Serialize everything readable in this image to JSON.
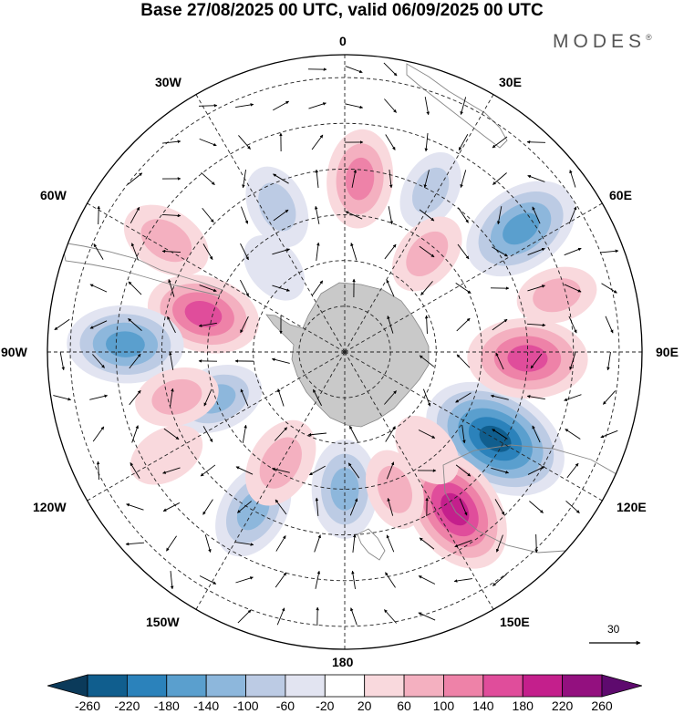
{
  "title": "Base 27/08/2025 00 UTC, valid 06/09/2025 00 UTC",
  "brand": "MODES",
  "brand_mark": "®",
  "longitude_labels": {
    "lon_0": "0",
    "lon_30e": "30E",
    "lon_60e": "60E",
    "lon_90e": "90E",
    "lon_120e": "120E",
    "lon_150e": "150E",
    "lon_180": "180",
    "lon_150w": "150W",
    "lon_120w": "120W",
    "lon_90w": "90W",
    "lon_60w": "60W",
    "lon_30w": "30W"
  },
  "reference_vector": "30",
  "colorbar": {
    "ticks": [
      "-260",
      "-220",
      "-180",
      "-140",
      "-100",
      "-60",
      "-20",
      "20",
      "60",
      "100",
      "140",
      "180",
      "220",
      "260"
    ],
    "colors": [
      "#0b3a5a",
      "#105e8e",
      "#2b82bb",
      "#5a9fce",
      "#8db7dc",
      "#bccbe4",
      "#e2e4f1",
      "#ffffff",
      "#f9d9dd",
      "#f4b0c0",
      "#ee82a8",
      "#e04d9b",
      "#c41f8c",
      "#93107f",
      "#5e0a6e"
    ]
  },
  "map_legend": {
    "colors": {
      "land": "#c9c9c9",
      "continent_outline": "#888888",
      "grid": "#222222",
      "arrow": "#000000"
    }
  },
  "anomaly_centers": [
    {
      "lat": -52,
      "lon": 120,
      "value": -250
    },
    {
      "lat": -48,
      "lon": 145,
      "value": 200
    },
    {
      "lat": -50,
      "lon": 92,
      "value": 170
    },
    {
      "lat": -43,
      "lon": 55,
      "value": -170
    },
    {
      "lat": -58,
      "lon": -75,
      "value": 150
    },
    {
      "lat": -42,
      "lon": -88,
      "value": -160
    },
    {
      "lat": -44,
      "lon": -58,
      "value": 90
    },
    {
      "lat": -50,
      "lon": -150,
      "value": -110
    },
    {
      "lat": -60,
      "lon": -110,
      "value": -100
    },
    {
      "lat": -62,
      "lon": -150,
      "value": 90
    },
    {
      "lat": -52,
      "lon": -105,
      "value": 70
    },
    {
      "lat": -55,
      "lon": -25,
      "value": -70
    },
    {
      "lat": -52,
      "lon": 5,
      "value": 110
    },
    {
      "lat": -50,
      "lon": 28,
      "value": -60
    },
    {
      "lat": -62,
      "lon": 40,
      "value": 70
    },
    {
      "lat": -60,
      "lon": 180,
      "value": -110
    },
    {
      "lat": -58,
      "lon": 160,
      "value": 60
    },
    {
      "lat": -62,
      "lon": 140,
      "value": 50
    },
    {
      "lat": -66,
      "lon": -40,
      "value": -40
    },
    {
      "lat": -45,
      "lon": -120,
      "value": 50
    },
    {
      "lat": -42,
      "lon": 75,
      "value": 60
    }
  ]
}
